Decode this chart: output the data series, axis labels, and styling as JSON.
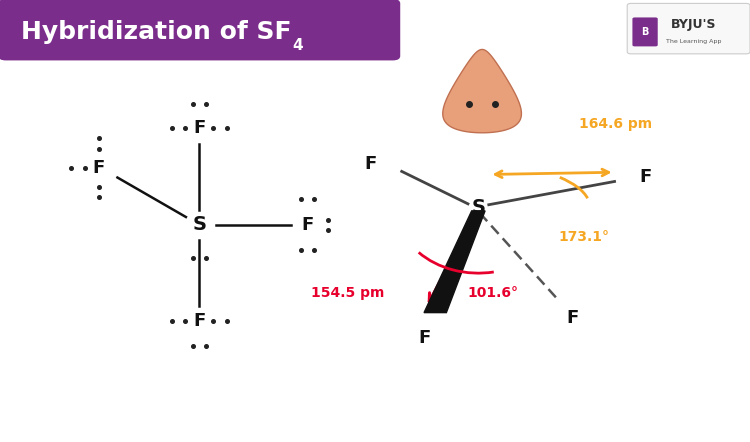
{
  "title": "Hybridization of SF",
  "title_sub": "4",
  "bg_color": "#ffffff",
  "header_bg": "#7b2d8b",
  "header_text_color": "#ffffff",
  "dot_color": "#222222",
  "bond_color": "#111111",
  "label_color": "#111111",
  "arrow_red": "#e8002d",
  "arrow_orange": "#f5a623",
  "angle_164": "164.6 pm",
  "angle_173": "173.1°",
  "angle_101": "101.6°",
  "dist_154": "154.5 pm",
  "orbital_color": "#e8a07a"
}
